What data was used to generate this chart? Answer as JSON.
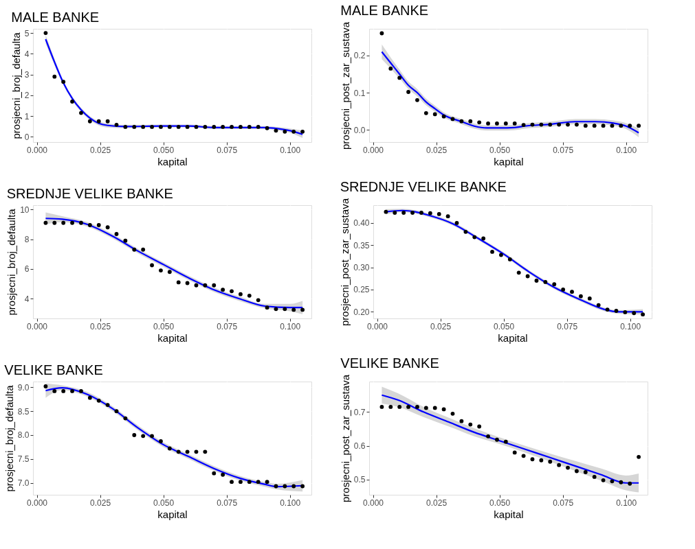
{
  "chart_data": [
    {
      "type": "scatter",
      "title": "MALE BANKE",
      "xlabel": "kapital",
      "ylabel": "prosjecni_broj_defaulta",
      "grid": true,
      "xlim": [
        -0.0015,
        0.1085
      ],
      "xticks": [
        {
          "value": 0,
          "label": "0.000"
        },
        {
          "value": 0.025,
          "label": "0.025"
        },
        {
          "value": 0.05,
          "label": "0.050"
        },
        {
          "value": 0.075,
          "label": "0.075"
        },
        {
          "value": 0.1,
          "label": "0.100"
        }
      ],
      "ylim": [
        -0.25,
        5.2
      ],
      "yticks": [
        0,
        1,
        2,
        3,
        4,
        5
      ],
      "x": [
        0.0035,
        0.007,
        0.0105,
        0.014,
        0.0175,
        0.021,
        0.0245,
        0.028,
        0.0315,
        0.035,
        0.0385,
        0.042,
        0.0455,
        0.049,
        0.0525,
        0.056,
        0.0595,
        0.063,
        0.0665,
        0.07,
        0.0735,
        0.077,
        0.0805,
        0.084,
        0.0875,
        0.091,
        0.0945,
        0.098,
        0.1015,
        0.105
      ],
      "series": [
        {
          "color": "#000000",
          "marker": "circle",
          "values": [
            5.0,
            2.9,
            2.65,
            1.7,
            1.15,
            0.75,
            0.75,
            0.75,
            0.58,
            0.48,
            0.48,
            0.48,
            0.48,
            0.48,
            0.48,
            0.48,
            0.48,
            0.48,
            0.48,
            0.48,
            0.48,
            0.48,
            0.48,
            0.48,
            0.48,
            0.42,
            0.3,
            0.25,
            0.25,
            0.25
          ]
        },
        {
          "type": "line",
          "color": "#0000ff",
          "x": [
            0.0035,
            0.007,
            0.0105,
            0.014,
            0.0175,
            0.021,
            0.0245,
            0.028,
            0.035,
            0.05,
            0.06,
            0.07,
            0.08,
            0.09,
            0.095,
            0.1,
            0.105
          ],
          "values": [
            4.7,
            3.6,
            2.6,
            1.85,
            1.3,
            0.9,
            0.65,
            0.55,
            0.5,
            0.52,
            0.52,
            0.45,
            0.45,
            0.45,
            0.4,
            0.3,
            0.12
          ],
          "lower": [
            4.5,
            3.45,
            2.5,
            1.75,
            1.2,
            0.8,
            0.55,
            0.45,
            0.42,
            0.45,
            0.45,
            0.38,
            0.38,
            0.38,
            0.32,
            0.2,
            -0.05
          ],
          "upper": [
            4.9,
            3.75,
            2.7,
            1.95,
            1.4,
            1.0,
            0.75,
            0.65,
            0.58,
            0.59,
            0.59,
            0.52,
            0.52,
            0.52,
            0.48,
            0.4,
            0.3
          ]
        }
      ]
    },
    {
      "type": "scatter",
      "title": "MALE BANKE",
      "xlabel": "kapital",
      "ylabel": "prosjecni_post_zar_sustava",
      "grid": true,
      "xlim": [
        -0.0015,
        0.1085
      ],
      "xticks": [
        {
          "value": 0,
          "label": "0.000"
        },
        {
          "value": 0.025,
          "label": "0.025"
        },
        {
          "value": 0.05,
          "label": "0.050"
        },
        {
          "value": 0.075,
          "label": "0.075"
        },
        {
          "value": 0.1,
          "label": "0.100"
        }
      ],
      "ylim": [
        -0.033,
        0.272
      ],
      "yticks": [
        {
          "value": 0,
          "label": "0.0"
        },
        {
          "value": 0.1,
          "label": "0.1"
        },
        {
          "value": 0.2,
          "label": "0.2"
        }
      ],
      "x": [
        0.0035,
        0.007,
        0.0105,
        0.014,
        0.0175,
        0.021,
        0.0245,
        0.028,
        0.0315,
        0.035,
        0.0385,
        0.042,
        0.0455,
        0.049,
        0.0525,
        0.056,
        0.0595,
        0.063,
        0.0665,
        0.07,
        0.0735,
        0.077,
        0.0805,
        0.084,
        0.0875,
        0.091,
        0.0945,
        0.098,
        0.1015,
        0.105
      ],
      "series": [
        {
          "color": "#000000",
          "marker": "circle",
          "values": [
            0.26,
            0.165,
            0.14,
            0.102,
            0.08,
            0.045,
            0.042,
            0.036,
            0.029,
            0.023,
            0.023,
            0.02,
            0.017,
            0.017,
            0.017,
            0.017,
            0.013,
            0.014,
            0.014,
            0.014,
            0.014,
            0.014,
            0.014,
            0.011,
            0.011,
            0.011,
            0.011,
            0.011,
            0.011,
            0.011
          ]
        },
        {
          "type": "line",
          "color": "#0000ff",
          "x": [
            0.0035,
            0.007,
            0.0105,
            0.014,
            0.0175,
            0.021,
            0.0245,
            0.028,
            0.035,
            0.04,
            0.045,
            0.05,
            0.056,
            0.06,
            0.07,
            0.08,
            0.088,
            0.095,
            0.1,
            0.105
          ],
          "values": [
            0.21,
            0.18,
            0.15,
            0.12,
            0.1,
            0.075,
            0.057,
            0.04,
            0.022,
            0.01,
            0.005,
            0.005,
            0.006,
            0.01,
            0.015,
            0.022,
            0.022,
            0.018,
            0.01,
            -0.008
          ],
          "lower": [
            0.19,
            0.165,
            0.138,
            0.11,
            0.09,
            0.066,
            0.049,
            0.033,
            0.015,
            0.003,
            -0.002,
            -0.002,
            -0.001,
            0.003,
            0.008,
            0.015,
            0.015,
            0.011,
            0.002,
            -0.02
          ],
          "upper": [
            0.23,
            0.195,
            0.162,
            0.13,
            0.11,
            0.084,
            0.065,
            0.047,
            0.029,
            0.017,
            0.012,
            0.012,
            0.013,
            0.017,
            0.022,
            0.029,
            0.029,
            0.025,
            0.018,
            0.004
          ]
        }
      ]
    },
    {
      "type": "scatter",
      "title": "SREDNJE VELIKE BANKE",
      "xlabel": "kapital",
      "ylabel": "prosjecni_broj_defaulta",
      "grid": true,
      "xlim": [
        -0.0015,
        0.1085
      ],
      "xticks": [
        {
          "value": 0,
          "label": "0.000"
        },
        {
          "value": 0.025,
          "label": "0.025"
        },
        {
          "value": 0.05,
          "label": "0.050"
        },
        {
          "value": 0.075,
          "label": "0.075"
        },
        {
          "value": 0.1,
          "label": "0.100"
        }
      ],
      "ylim": [
        2.67,
        10.29
      ],
      "yticks": [
        4,
        6,
        8,
        10
      ],
      "x": [
        0.0035,
        0.007,
        0.0105,
        0.014,
        0.0175,
        0.021,
        0.0245,
        0.028,
        0.0315,
        0.035,
        0.0385,
        0.042,
        0.0455,
        0.049,
        0.0525,
        0.056,
        0.0595,
        0.063,
        0.0665,
        0.07,
        0.0735,
        0.077,
        0.0805,
        0.084,
        0.0875,
        0.091,
        0.0945,
        0.098,
        0.1015,
        0.105
      ],
      "series": [
        {
          "color": "#000000",
          "marker": "circle",
          "values": [
            9.1,
            9.1,
            9.1,
            9.1,
            9.1,
            8.95,
            8.95,
            8.8,
            8.35,
            7.9,
            7.3,
            7.3,
            6.25,
            5.9,
            5.8,
            5.1,
            5.05,
            4.9,
            4.9,
            4.9,
            4.6,
            4.5,
            4.3,
            4.2,
            3.9,
            3.4,
            3.3,
            3.3,
            3.25,
            3.25
          ]
        },
        {
          "type": "line",
          "color": "#0000ff",
          "x": [
            0.0035,
            0.01,
            0.02,
            0.03,
            0.04,
            0.05,
            0.06,
            0.07,
            0.08,
            0.09,
            0.1,
            0.105
          ],
          "values": [
            9.4,
            9.35,
            9.0,
            8.2,
            7.2,
            6.3,
            5.4,
            4.6,
            4.0,
            3.5,
            3.4,
            3.4
          ],
          "lower": [
            9.0,
            9.15,
            8.85,
            8.05,
            7.05,
            6.15,
            5.25,
            4.45,
            3.85,
            3.35,
            3.15,
            2.95
          ],
          "upper": [
            9.8,
            9.55,
            9.15,
            8.35,
            7.35,
            6.45,
            5.55,
            4.75,
            4.15,
            3.65,
            3.65,
            3.85
          ]
        }
      ]
    },
    {
      "type": "scatter",
      "title": "SREDNJE VELIKE BANKE",
      "xlabel": "kapital",
      "ylabel": "prosjecni_post_zar_sustava",
      "grid": true,
      "xlim": [
        -0.0015,
        0.1085
      ],
      "xticks": [
        {
          "value": 0,
          "label": "0.000"
        },
        {
          "value": 0.025,
          "label": "0.025"
        },
        {
          "value": 0.05,
          "label": "0.050"
        },
        {
          "value": 0.075,
          "label": "0.075"
        },
        {
          "value": 0.1,
          "label": "0.100"
        }
      ],
      "ylim": [
        0.185,
        0.44
      ],
      "yticks": [
        {
          "value": 0.2,
          "label": "0.20"
        },
        {
          "value": 0.25,
          "label": "0.25"
        },
        {
          "value": 0.3,
          "label": "0.30"
        },
        {
          "value": 0.35,
          "label": "0.35"
        },
        {
          "value": 0.4,
          "label": "0.40"
        }
      ],
      "x": [
        0.0035,
        0.007,
        0.0105,
        0.014,
        0.0175,
        0.021,
        0.0245,
        0.028,
        0.0315,
        0.035,
        0.0385,
        0.042,
        0.0455,
        0.049,
        0.0525,
        0.056,
        0.0595,
        0.063,
        0.0665,
        0.07,
        0.0735,
        0.077,
        0.0805,
        0.084,
        0.0875,
        0.091,
        0.0945,
        0.098,
        0.1015,
        0.105
      ],
      "series": [
        {
          "color": "#000000",
          "marker": "circle",
          "values": [
            0.425,
            0.423,
            0.423,
            0.423,
            0.423,
            0.422,
            0.42,
            0.415,
            0.4,
            0.38,
            0.368,
            0.365,
            0.335,
            0.328,
            0.318,
            0.288,
            0.28,
            0.27,
            0.267,
            0.262,
            0.25,
            0.245,
            0.235,
            0.23,
            0.215,
            0.205,
            0.202,
            0.199,
            0.197,
            0.194
          ]
        },
        {
          "type": "line",
          "color": "#0000ff",
          "x": [
            0.0035,
            0.01,
            0.015,
            0.02,
            0.03,
            0.04,
            0.05,
            0.06,
            0.07,
            0.08,
            0.09,
            0.095,
            0.105
          ],
          "values": [
            0.425,
            0.428,
            0.425,
            0.418,
            0.398,
            0.365,
            0.33,
            0.29,
            0.255,
            0.228,
            0.205,
            0.2,
            0.2
          ],
          "lower": [
            0.419,
            0.424,
            0.421,
            0.414,
            0.394,
            0.361,
            0.326,
            0.286,
            0.251,
            0.224,
            0.201,
            0.196,
            0.194
          ],
          "upper": [
            0.431,
            0.432,
            0.429,
            0.422,
            0.402,
            0.369,
            0.334,
            0.294,
            0.259,
            0.232,
            0.209,
            0.204,
            0.206
          ]
        }
      ]
    },
    {
      "type": "scatter",
      "title": "VELIKE BANKE",
      "xlabel": "kapital",
      "ylabel": "prosjecni_broj_defaulta",
      "grid": true,
      "xlim": [
        -0.0015,
        0.1085
      ],
      "xticks": [
        {
          "value": 0,
          "label": "0.000"
        },
        {
          "value": 0.025,
          "label": "0.025"
        },
        {
          "value": 0.05,
          "label": "0.050"
        },
        {
          "value": 0.075,
          "label": "0.075"
        },
        {
          "value": 0.1,
          "label": "0.100"
        }
      ],
      "ylim": [
        6.75,
        9.12
      ],
      "yticks": [
        {
          "value": 7,
          "label": "7.0"
        },
        {
          "value": 7.5,
          "label": "7.5"
        },
        {
          "value": 8,
          "label": "8.0"
        },
        {
          "value": 8.5,
          "label": "8.5"
        },
        {
          "value": 9,
          "label": "9.0"
        }
      ],
      "x": [
        0.0035,
        0.007,
        0.0105,
        0.014,
        0.0175,
        0.021,
        0.0245,
        0.028,
        0.0315,
        0.035,
        0.0385,
        0.042,
        0.0455,
        0.049,
        0.0525,
        0.056,
        0.0595,
        0.063,
        0.0665,
        0.07,
        0.0735,
        0.077,
        0.0805,
        0.084,
        0.0875,
        0.091,
        0.0945,
        0.098,
        0.1015,
        0.105
      ],
      "series": [
        {
          "color": "#000000",
          "marker": "circle",
          "values": [
            9.02,
            8.92,
            8.92,
            8.92,
            8.92,
            8.78,
            8.72,
            8.63,
            8.5,
            8.35,
            8.0,
            7.98,
            7.98,
            7.87,
            7.72,
            7.65,
            7.65,
            7.65,
            7.65,
            7.2,
            7.17,
            7.02,
            7.02,
            7.02,
            7.02,
            7.02,
            6.93,
            6.93,
            6.93,
            6.93
          ]
        },
        {
          "type": "line",
          "color": "#0000ff",
          "x": [
            0.0035,
            0.01,
            0.02,
            0.03,
            0.04,
            0.05,
            0.06,
            0.07,
            0.08,
            0.09,
            0.095,
            0.105
          ],
          "values": [
            8.93,
            8.99,
            8.85,
            8.55,
            8.15,
            7.8,
            7.55,
            7.3,
            7.1,
            6.97,
            6.92,
            6.94
          ],
          "lower": [
            8.78,
            8.94,
            8.8,
            8.5,
            8.1,
            7.75,
            7.5,
            7.25,
            7.05,
            6.92,
            6.86,
            6.82
          ],
          "upper": [
            9.08,
            9.04,
            8.9,
            8.6,
            8.2,
            7.85,
            7.6,
            7.35,
            7.15,
            7.02,
            6.98,
            7.06
          ]
        }
      ]
    },
    {
      "type": "scatter",
      "title": "VELIKE BANKE",
      "xlabel": "kapital",
      "ylabel": "prosjecni_post_zar_sustava",
      "grid": true,
      "xlim": [
        -0.0015,
        0.1085
      ],
      "xticks": [
        {
          "value": 0,
          "label": "0.000"
        },
        {
          "value": 0.025,
          "label": "0.025"
        },
        {
          "value": 0.05,
          "label": "0.050"
        },
        {
          "value": 0.075,
          "label": "0.075"
        },
        {
          "value": 0.1,
          "label": "0.100"
        }
      ],
      "ylim": [
        0.455,
        0.79
      ],
      "yticks": [
        0.5,
        0.6,
        0.7
      ],
      "x": [
        0.0035,
        0.007,
        0.0105,
        0.014,
        0.0175,
        0.021,
        0.0245,
        0.028,
        0.0315,
        0.035,
        0.0385,
        0.042,
        0.0455,
        0.049,
        0.0525,
        0.056,
        0.0595,
        0.063,
        0.0665,
        0.07,
        0.0735,
        0.077,
        0.0805,
        0.084,
        0.0875,
        0.091,
        0.0945,
        0.098,
        0.1015,
        0.105
      ],
      "series": [
        {
          "color": "#000000",
          "marker": "circle",
          "values": [
            0.715,
            0.715,
            0.715,
            0.715,
            0.715,
            0.712,
            0.712,
            0.708,
            0.695,
            0.673,
            0.663,
            0.657,
            0.628,
            0.618,
            0.612,
            0.58,
            0.57,
            0.56,
            0.557,
            0.553,
            0.543,
            0.535,
            0.525,
            0.522,
            0.508,
            0.498,
            0.495,
            0.492,
            0.488,
            0.567
          ]
        },
        {
          "type": "line",
          "color": "#0000ff",
          "x": [
            0.0035,
            0.01,
            0.02,
            0.03,
            0.04,
            0.05,
            0.06,
            0.07,
            0.08,
            0.09,
            0.1,
            0.105
          ],
          "values": [
            0.75,
            0.735,
            0.7,
            0.67,
            0.64,
            0.615,
            0.59,
            0.565,
            0.54,
            0.515,
            0.49,
            0.49
          ],
          "lower": [
            0.725,
            0.715,
            0.685,
            0.657,
            0.628,
            0.605,
            0.58,
            0.553,
            0.525,
            0.497,
            0.468,
            0.462
          ],
          "upper": [
            0.775,
            0.755,
            0.715,
            0.683,
            0.652,
            0.625,
            0.6,
            0.577,
            0.555,
            0.533,
            0.512,
            0.518
          ]
        }
      ]
    }
  ]
}
